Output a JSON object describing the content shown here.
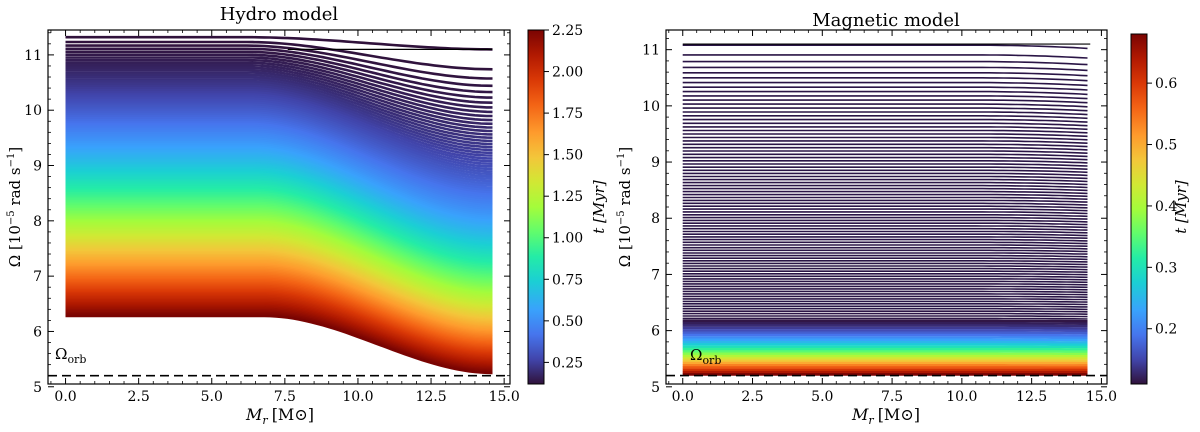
{
  "chart_data": [
    {
      "type": "line",
      "title": "Hydro model",
      "xlabel_main": "M",
      "xlabel_sub": "r",
      "xlabel_unit": "[M⊙]",
      "ylabel_main": "Ω [10",
      "ylabel_exp1": "−5",
      "ylabel_mid": " rad s",
      "ylabel_exp2": "−1",
      "ylabel_end": "]",
      "xlim": [
        -0.6,
        15.2
      ],
      "ylim": [
        5.05,
        11.45
      ],
      "xticks": [
        "0.0",
        "2.5",
        "5.0",
        "7.5",
        "10.0",
        "12.5",
        "15.0"
      ],
      "xtick_values": [
        0,
        2.5,
        5,
        7.5,
        10,
        12.5,
        15
      ],
      "yticks": [
        "5",
        "6",
        "7",
        "8",
        "9",
        "10",
        "11"
      ],
      "ytick_values": [
        5,
        6,
        7,
        8,
        9,
        10,
        11
      ],
      "omega_orb": 5.2,
      "omega_orb_label": "Ω",
      "omega_orb_sub": "orb",
      "profile": {
        "core_edge": 6.2,
        "surface": 14.6,
        "initial_omega": 11.32,
        "initial_plateau": 11.1,
        "final_omega": 6.28,
        "final_surface_omega": 5.25,
        "n_curves": 160
      },
      "colorbar": {
        "label": "t [Myr]",
        "range": [
          0.12,
          2.25
        ],
        "ticks": [
          "0.25",
          "0.50",
          "0.75",
          "1.00",
          "1.25",
          "1.50",
          "1.75",
          "2.00",
          "2.25"
        ],
        "tick_values": [
          0.25,
          0.5,
          0.75,
          1.0,
          1.25,
          1.5,
          1.75,
          2.0,
          2.25
        ]
      }
    },
    {
      "type": "line",
      "title": "Magnetic model",
      "xlabel_main": "M",
      "xlabel_sub": "r",
      "xlabel_unit": "[M⊙]",
      "ylabel_main": "Ω [10",
      "ylabel_exp1": "−5",
      "ylabel_mid": " rad s",
      "ylabel_exp2": "−1",
      "ylabel_end": "]",
      "xlim": [
        -0.6,
        15.2
      ],
      "ylim": [
        5.05,
        11.35
      ],
      "xticks": [
        "0.0",
        "2.5",
        "5.0",
        "7.5",
        "10.0",
        "12.5",
        "15.0"
      ],
      "xtick_values": [
        0,
        2.5,
        5,
        7.5,
        10,
        12.5,
        15
      ],
      "yticks": [
        "5",
        "6",
        "7",
        "8",
        "9",
        "10",
        "11"
      ],
      "ytick_values": [
        5,
        6,
        7,
        8,
        9,
        10,
        11
      ],
      "omega_orb": 5.2,
      "omega_orb_label": "Ω",
      "omega_orb_sub": "orb",
      "profile": {
        "surface": 14.6,
        "initial_omega": 11.08,
        "final_omega": 5.22,
        "n_curves": 110
      },
      "colorbar": {
        "label": "t [Myr]",
        "range": [
          0.11,
          0.68
        ],
        "ticks": [
          "0.2",
          "0.3",
          "0.4",
          "0.5",
          "0.6"
        ],
        "tick_values": [
          0.2,
          0.3,
          0.4,
          0.5,
          0.6
        ]
      }
    }
  ]
}
